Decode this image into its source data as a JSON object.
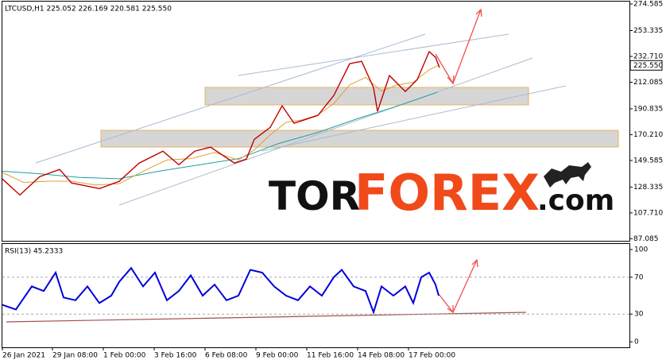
{
  "chart_data": {
    "type": "line",
    "header": "LTCUSD,H1  225.052 226.169 220.581 225.550",
    "logo": {
      "a": "TOR",
      "b": "FOREX",
      "c": ".com"
    },
    "xlim": [
      0,
      789
    ],
    "xticks": [
      {
        "value": 0,
        "label": "26 Jan 2021"
      },
      {
        "value": 63,
        "label": "29 Jan 08:00"
      },
      {
        "value": 127,
        "label": "1 Feb 00:00"
      },
      {
        "value": 191,
        "label": "3 Feb 16:00"
      },
      {
        "value": 255,
        "label": "6 Feb 08:00"
      },
      {
        "value": 319,
        "label": "9 Feb 00:00"
      },
      {
        "value": 383,
        "label": "11 Feb 16:00"
      },
      {
        "value": 447,
        "label": "14 Feb 08:00"
      },
      {
        "value": 511,
        "label": "17 Feb 00:00"
      }
    ],
    "ylim": [
      85.4,
      276.5
    ],
    "yticks": [
      274.585,
      253.335,
      {
        "value": 232.71,
        "label": "232.710"
      },
      212.085,
      190.835,
      {
        "value": 170.21,
        "label": "170.210"
      },
      149.585,
      128.335,
      {
        "value": 107.71,
        "label": "107.710"
      },
      87.085
    ],
    "last_price": {
      "value": 225.55,
      "label": "225.550"
    },
    "series": [
      {
        "color": "#c00000",
        "x": [
          0,
          22,
          47,
          72,
          87,
          122,
          147,
          172,
          202,
          222,
          242,
          262,
          292,
          307,
          317,
          337,
          352,
          367,
          397,
          417,
          437,
          452,
          467,
          472,
          487,
          507,
          522,
          537,
          545,
          550
        ],
        "values": [
          134.8,
          122,
          136.7,
          142.4,
          131.6,
          127.1,
          132.9,
          147.5,
          157,
          146.2,
          157,
          160.2,
          147.5,
          150.7,
          166.5,
          176,
          193.2,
          179.3,
          185.6,
          201.5,
          226.9,
          228.8,
          207.8,
          188.8,
          217.4,
          204.7,
          214.2,
          236.5,
          232,
          223.7
        ]
      },
      {
        "color": "#e0a030",
        "x": [
          0,
          27,
          57,
          87,
          117,
          147,
          177,
          207,
          237,
          267,
          297,
          317,
          337,
          357,
          377,
          397,
          417,
          437,
          457,
          477,
          497,
          517,
          537,
          550
        ],
        "values": [
          140,
          132,
          133,
          133,
          130,
          131,
          141,
          150,
          151,
          156,
          150,
          158,
          170,
          180,
          182,
          186,
          195,
          210,
          216,
          205,
          210,
          212,
          222,
          226
        ]
      },
      {
        "color": "#20a0a0",
        "x": [
          0,
          47,
          97,
          147,
          197,
          247,
          297,
          347,
          397,
          447,
          497,
          547
        ],
        "values": [
          141,
          139,
          136,
          135,
          141,
          146,
          151,
          163,
          172,
          183,
          193,
          204
        ]
      }
    ],
    "rsi": {
      "label": "RSI(13) 45.2333",
      "color": "#0000dd",
      "ylim": [
        -6,
        106
      ],
      "yticks": [
        100,
        70,
        30,
        0
      ],
      "levels": [
        70,
        30
      ],
      "x": [
        0,
        17,
        37,
        52,
        67,
        77,
        92,
        107,
        122,
        137,
        147,
        162,
        177,
        192,
        207,
        222,
        237,
        252,
        267,
        282,
        297,
        312,
        327,
        342,
        357,
        372,
        387,
        402,
        417,
        427,
        442,
        457,
        467,
        477,
        492,
        507,
        517,
        527,
        537,
        545,
        549
      ],
      "values": [
        40,
        35,
        60,
        55,
        75,
        48,
        45,
        60,
        42,
        50,
        65,
        80,
        60,
        75,
        45,
        55,
        72,
        50,
        62,
        45,
        50,
        78,
        75,
        60,
        50,
        45,
        60,
        50,
        70,
        78,
        60,
        55,
        32,
        60,
        50,
        60,
        42,
        70,
        75,
        62,
        50
      ]
    }
  }
}
